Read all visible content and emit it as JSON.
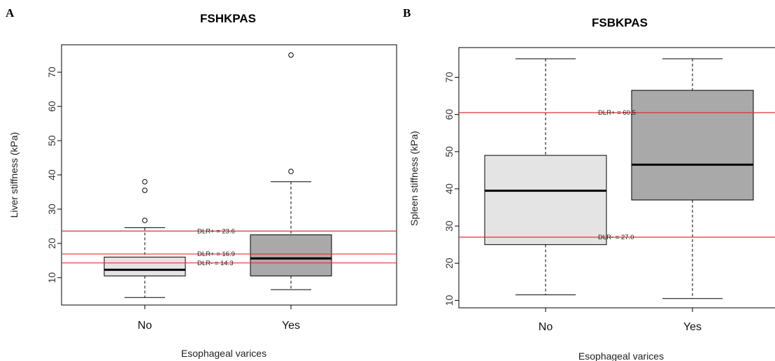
{
  "chart_data": [
    {
      "type": "box",
      "panel_label": "A",
      "title": "FSHKPAS",
      "xlabel": "Esophageal varices",
      "ylabel": "Liver stiffness (kPa)",
      "categories": [
        "No",
        "Yes"
      ],
      "ylim": [
        2,
        78
      ],
      "yticks": [
        10,
        20,
        30,
        40,
        50,
        60,
        70
      ],
      "boxes": [
        {
          "category": "No",
          "whisker_low": 4.2,
          "q1": 10.5,
          "median": 12.3,
          "q3": 16.0,
          "whisker_high": 24.6,
          "outliers": [
            26.7,
            35.5,
            38.0
          ],
          "fill": "#e4e4e4"
        },
        {
          "category": "Yes",
          "whisker_low": 6.5,
          "q1": 10.5,
          "median": 15.6,
          "q3": 22.5,
          "whisker_high": 38.0,
          "outliers": [
            41.0,
            75.0
          ],
          "fill": "#a9a9a9"
        }
      ],
      "reference_lines": [
        {
          "label": "DLR+ = 23.6",
          "value": 23.6,
          "color": "#e03030"
        },
        {
          "label": "DLR+ = 16.9",
          "value": 16.9,
          "color": "#e03030"
        },
        {
          "label": "DLR- = 14.3",
          "value": 14.3,
          "color": "#e03030"
        }
      ]
    },
    {
      "type": "box",
      "panel_label": "B",
      "title": "FSBKPAS",
      "xlabel": "Esophageal varices",
      "ylabel": "Spleen stiffness (kPa)",
      "categories": [
        "No",
        "Yes"
      ],
      "ylim": [
        8,
        78
      ],
      "yticks": [
        10,
        20,
        30,
        40,
        50,
        60,
        70
      ],
      "boxes": [
        {
          "category": "No",
          "whisker_low": 11.5,
          "q1": 25.0,
          "median": 39.5,
          "q3": 49.0,
          "whisker_high": 75.0,
          "outliers": [],
          "fill": "#e4e4e4"
        },
        {
          "category": "Yes",
          "whisker_low": 10.5,
          "q1": 37.0,
          "median": 46.5,
          "q3": 66.5,
          "whisker_high": 75.0,
          "outliers": [],
          "fill": "#a9a9a9"
        }
      ],
      "reference_lines": [
        {
          "label": "DLR+ = 60.5",
          "value": 60.5,
          "color": "#e03030"
        },
        {
          "label": "DLR- = 27.0",
          "value": 27.0,
          "color": "#e03030"
        }
      ]
    }
  ]
}
